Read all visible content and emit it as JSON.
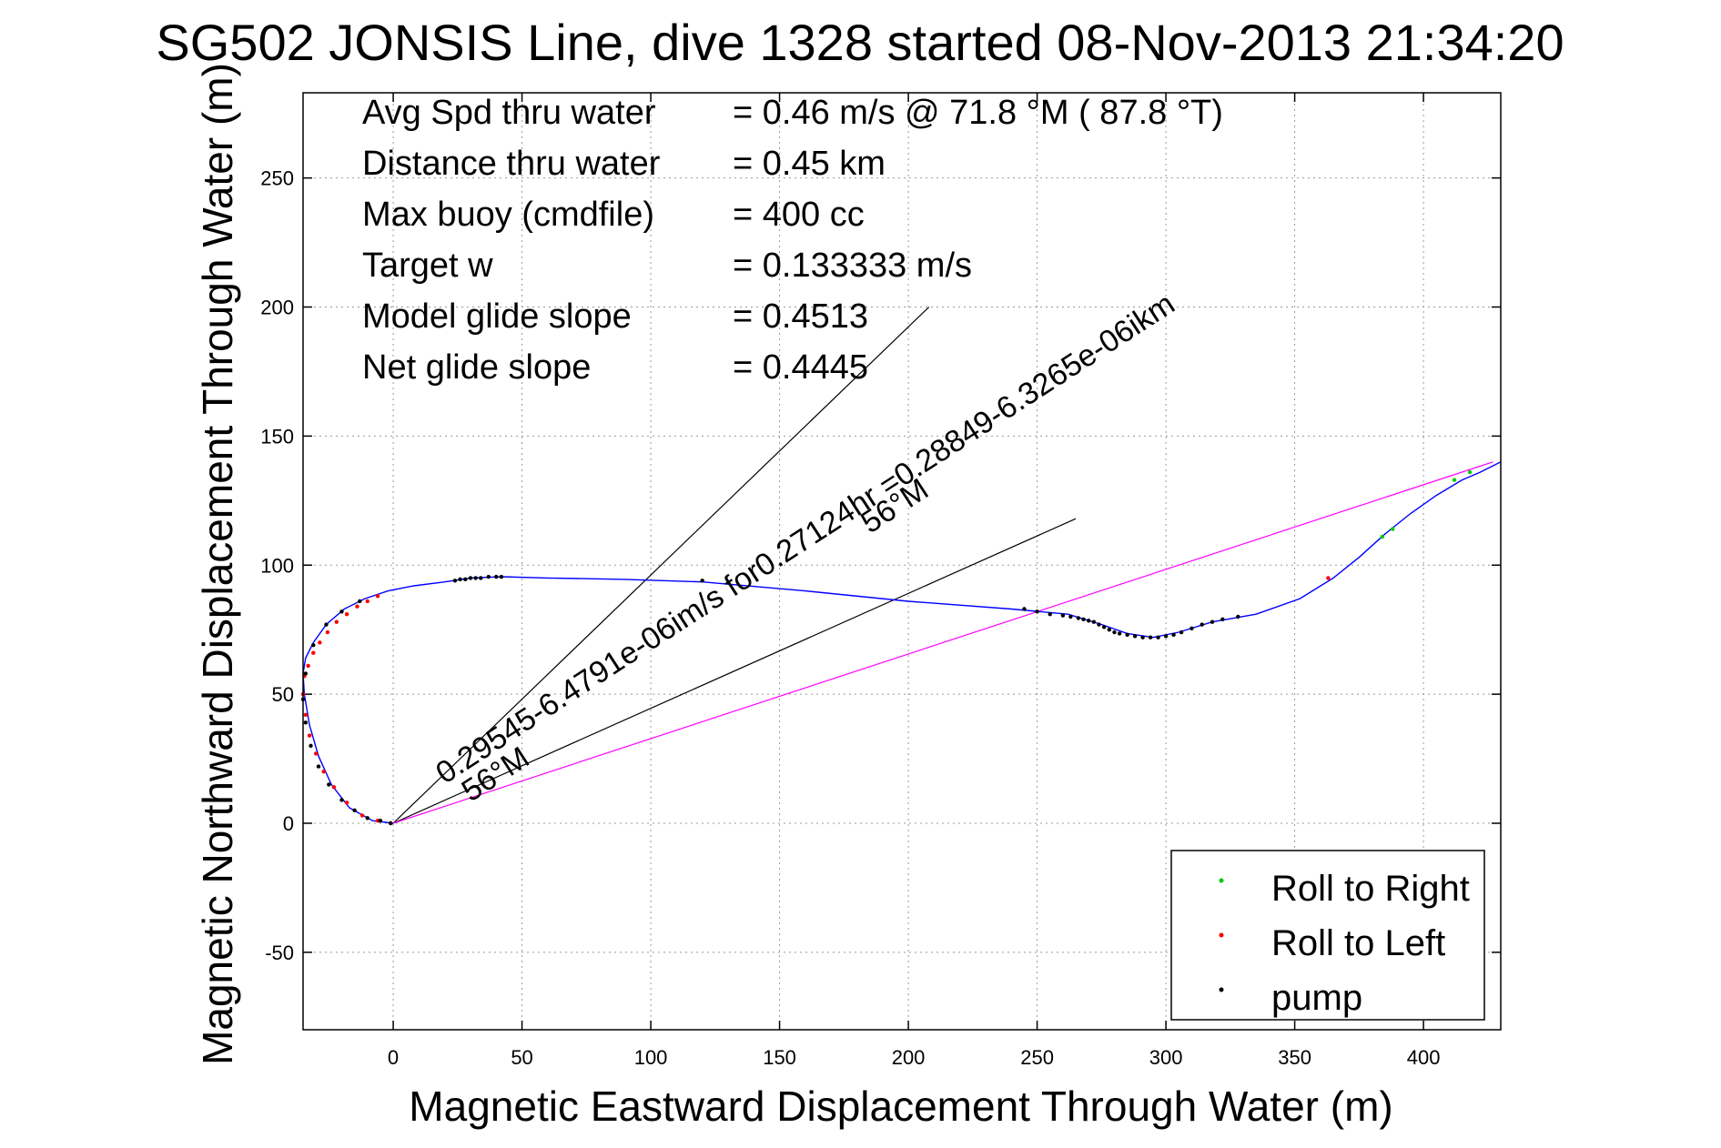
{
  "chart_data": {
    "type": "scatter",
    "title": "SG502 JONSIS Line, dive 1328 started 08-Nov-2013 21:34:20",
    "xlabel": "Magnetic Eastward Displacement Through Water (m)",
    "ylabel": "Magnetic Northward Displacement Through Water (m)",
    "xlim": [
      -35,
      430
    ],
    "ylim": [
      -80,
      283
    ],
    "xticks": [
      0,
      50,
      100,
      150,
      200,
      250,
      300,
      350,
      400
    ],
    "yticks": [
      -50,
      0,
      50,
      100,
      150,
      200,
      250
    ],
    "grid": true,
    "legend_position": "bottom-right",
    "stats": [
      {
        "label": "Avg Spd thru water",
        "value": "=  0.46 m/s @  71.8 °M ( 87.8 °T)"
      },
      {
        "label": "Distance thru water",
        "value": "=  0.45 km"
      },
      {
        "label": "Max buoy (cmdfile)",
        "value": "= 400 cc"
      },
      {
        "label": "Target w",
        "value": "= 0.133333 m/s"
      },
      {
        "label": "Model glide slope",
        "value": "= 0.4513"
      },
      {
        "label": "Net glide slope",
        "value": "= 0.4445"
      }
    ],
    "annotations": [
      {
        "text": "0.29545-6.4791e-06im/s for0.27124hr =0.28849-6.3265e-06ikm",
        "x": 20,
        "y": 15,
        "angle_deg": 33
      },
      {
        "text": "56°M",
        "x": 185,
        "y": 112,
        "angle_deg": 33
      },
      {
        "text": "56°M",
        "x": 30,
        "y": 8,
        "angle_deg": 33
      }
    ],
    "reference_lines": [
      {
        "name": "heading-line-upper",
        "x": [
          0,
          208
        ],
        "y": [
          0,
          200
        ],
        "color": "#000000"
      },
      {
        "name": "heading-line-lower",
        "x": [
          0,
          265
        ],
        "y": [
          0,
          118
        ],
        "color": "#000000"
      },
      {
        "name": "net-displacement-line",
        "x": [
          0,
          427
        ],
        "y": [
          0,
          140
        ],
        "color": "#ff00ff"
      }
    ],
    "series": [
      {
        "name": "track",
        "color": "#0000ff",
        "x": [
          0,
          -8,
          -17,
          -24,
          -29,
          -32.5,
          -34.5,
          -35,
          -34,
          -31,
          -26,
          -19,
          -11,
          -2,
          8,
          20,
          30,
          42,
          60,
          90,
          120,
          160,
          200,
          240,
          262,
          275,
          285,
          295,
          305,
          318,
          335,
          352,
          365,
          375,
          385,
          395,
          405,
          415,
          422,
          430
        ],
        "y": [
          0,
          1,
          6,
          15,
          26,
          38,
          50,
          58,
          64,
          70,
          77,
          83,
          87,
          90,
          92,
          93.5,
          95,
          95.5,
          95,
          94.5,
          93.5,
          90,
          86,
          83,
          81,
          77,
          73.5,
          72,
          74,
          78,
          81,
          87,
          95,
          103,
          112,
          120,
          127,
          133,
          136,
          140
        ]
      },
      {
        "name": "Roll to Right",
        "color": "#00cc00",
        "x": [
          384,
          388,
          412,
          418
        ],
        "y": [
          111,
          114,
          133,
          136
        ]
      },
      {
        "name": "Roll to Left",
        "color": "#ff0000",
        "x": [
          -1,
          -6,
          -12,
          -18,
          -23,
          -27,
          -30,
          -32.5,
          -34,
          -35,
          -34.5,
          -33,
          -31,
          -28.5,
          -25.5,
          -22,
          -18,
          -14,
          -10,
          -6,
          363
        ],
        "y": [
          0,
          1,
          3,
          8,
          14,
          20,
          27,
          34,
          42,
          50,
          57,
          61,
          66,
          70,
          74,
          78,
          81,
          84,
          86,
          88,
          95
        ]
      },
      {
        "name": "pump",
        "color": "#000000",
        "x": [
          -1,
          -5,
          -10,
          -15,
          -20,
          -25,
          -29,
          -32,
          -34,
          -35,
          -34,
          -31,
          -26,
          -20,
          -13,
          24,
          26,
          28,
          30,
          32,
          34,
          37,
          40,
          42,
          120,
          245,
          250,
          255,
          260,
          263,
          266,
          268,
          270,
          272,
          274,
          276,
          278,
          280,
          282,
          285,
          288,
          291,
          294,
          297,
          300,
          303,
          306,
          310,
          314,
          318,
          322,
          328
        ],
        "y": [
          0,
          1,
          2,
          5,
          9,
          15,
          22,
          30,
          39,
          48,
          58,
          69,
          77,
          82,
          86,
          94,
          94.5,
          94.5,
          95,
          95,
          95,
          95.5,
          95.5,
          95.5,
          94,
          83,
          82,
          81,
          80.5,
          80,
          79.5,
          79,
          78.5,
          78,
          77,
          76,
          75,
          74,
          73.5,
          73,
          72.5,
          72,
          72,
          72,
          72.5,
          73,
          74,
          75.5,
          77,
          78,
          79,
          80
        ]
      }
    ]
  }
}
